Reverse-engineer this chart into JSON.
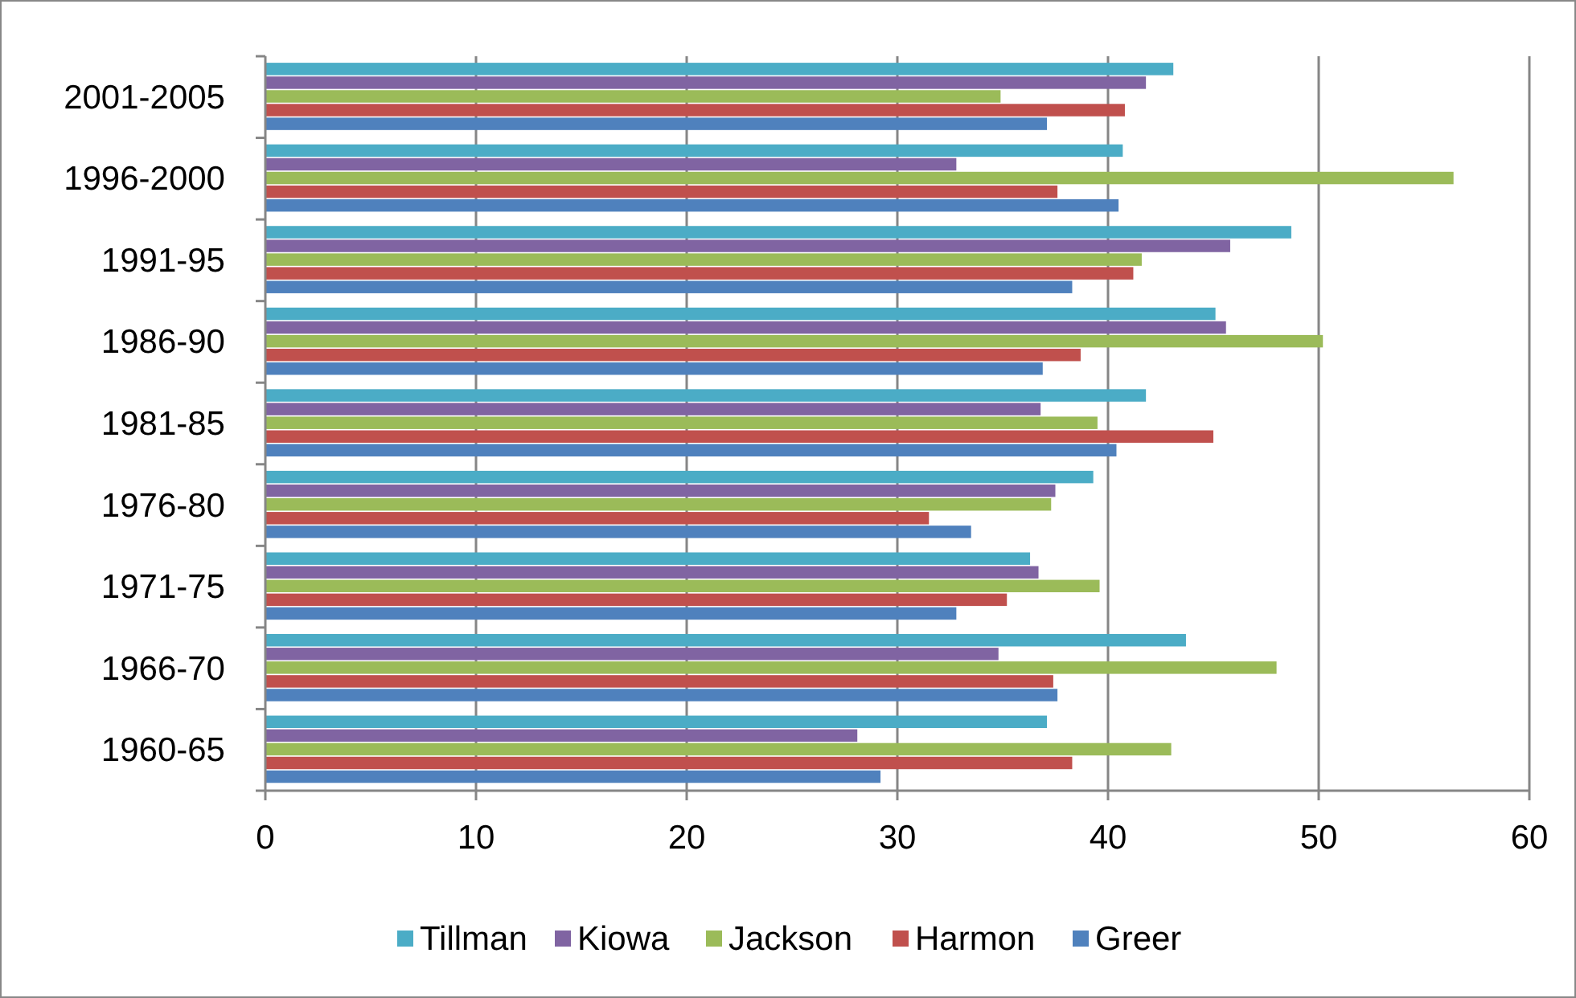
{
  "chart_data": {
    "type": "bar",
    "orientation": "horizontal",
    "categories": [
      "2001-2005",
      "1996-2000",
      "1991-95",
      "1986-90",
      "1981-85",
      "1976-80",
      "1971-75",
      "1966-70",
      "1960-65"
    ],
    "series": [
      {
        "name": "Tillman",
        "color": "#4bacc6",
        "values": [
          43.1,
          40.7,
          48.7,
          45.1,
          41.8,
          39.3,
          36.3,
          43.7,
          37.1
        ]
      },
      {
        "name": "Kiowa",
        "color": "#8064a2",
        "values": [
          41.8,
          32.8,
          45.8,
          45.6,
          36.8,
          37.5,
          36.7,
          34.8,
          28.1
        ]
      },
      {
        "name": "Jackson",
        "color": "#9bbb59",
        "values": [
          34.9,
          56.4,
          41.6,
          50.2,
          39.5,
          37.3,
          39.6,
          48.0,
          43.0
        ]
      },
      {
        "name": "Harmon",
        "color": "#c0504d",
        "values": [
          40.8,
          37.6,
          41.2,
          38.7,
          45.0,
          31.5,
          35.2,
          37.4,
          38.3
        ]
      },
      {
        "name": "Greer",
        "color": "#4f81bd",
        "values": [
          37.1,
          40.5,
          38.3,
          36.9,
          40.4,
          33.5,
          32.8,
          37.6,
          29.2
        ]
      }
    ],
    "xlim": [
      0,
      60
    ],
    "xticks": [
      0,
      10,
      20,
      30,
      40,
      50,
      60
    ],
    "grid": "x",
    "legend": "bottom"
  }
}
